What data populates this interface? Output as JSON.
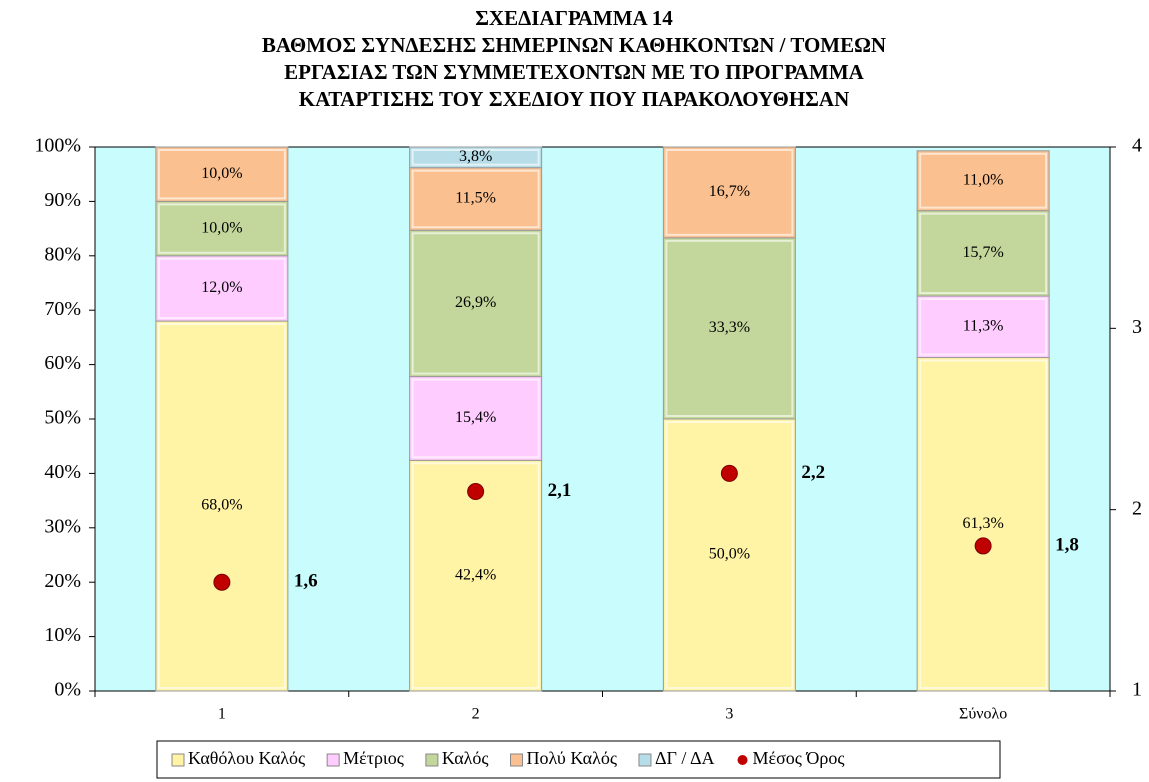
{
  "chart_data": {
    "type": "bar",
    "stacked": true,
    "title": [
      "ΣΧΕΔΙΑΓΡΑΜΜΑ 14",
      "ΒΑΘΜΟΣ ΣΥΝΔΕΣΗΣ ΣΗΜΕΡΙΝΩΝ ΚΑΘΗΚΟΝΤΩΝ / ΤΟΜΕΩΝ",
      "ΕΡΓΑΣΙΑΣ ΤΩΝ ΣΥΜΜΕΤΕΧΟΝΤΩΝ ΜΕ ΤΟ ΠΡΟΓΡΑΜΜΑ",
      "ΚΑΤΑΡΤΙΣΗΣ ΤΟΥ ΣΧΕΔΙΟΥ ΠΟΥ ΠΑΡΑΚΟΛΟΥΘΗΣΑΝ"
    ],
    "categories": [
      "1",
      "2",
      "3",
      "Σύνολο"
    ],
    "series": [
      {
        "name": "Καθόλου Καλός",
        "color": "#fff3a6",
        "values": [
          68.0,
          42.4,
          50.0,
          61.3
        ],
        "value_labels": [
          "68,0%",
          "42,4%",
          "50,0%",
          "61,3%"
        ]
      },
      {
        "name": "Μέτριος",
        "color": "#ffccff",
        "values": [
          12.0,
          15.4,
          null,
          11.3
        ],
        "value_labels": [
          "12,0%",
          "15,4%",
          null,
          "11,3%"
        ]
      },
      {
        "name": "Καλός",
        "color": "#c3d69b",
        "values": [
          10.0,
          26.9,
          33.3,
          15.7
        ],
        "value_labels": [
          "10,0%",
          "26,9%",
          "33,3%",
          "15,7%"
        ]
      },
      {
        "name": "Πολύ Καλός",
        "color": "#fac090",
        "values": [
          10.0,
          11.5,
          16.7,
          11.0
        ],
        "value_labels": [
          "10,0%",
          "11,5%",
          "16,7%",
          "11,0%"
        ]
      },
      {
        "name": "ΔΓ / ΔΑ",
        "color": "#b7dee8",
        "values": [
          null,
          3.8,
          null,
          null
        ],
        "value_labels": [
          null,
          "3,8%",
          null,
          null
        ]
      },
      {
        "name": "Μέσος Όρος",
        "color": "#c00000",
        "type": "scatter",
        "axis": "y2",
        "values": [
          1.6,
          2.1,
          2.2,
          1.8
        ],
        "value_labels": [
          "1,6",
          "2,1",
          "2,2",
          "1,8"
        ]
      }
    ],
    "ylim": [
      0,
      100
    ],
    "yticks": [
      {
        "value": 0,
        "label": "0%"
      },
      {
        "value": 10,
        "label": "10%"
      },
      {
        "value": 20,
        "label": "20%"
      },
      {
        "value": 30,
        "label": "30%"
      },
      {
        "value": 40,
        "label": "40%"
      },
      {
        "value": 50,
        "label": "50%"
      },
      {
        "value": 60,
        "label": "60%"
      },
      {
        "value": 70,
        "label": "70%"
      },
      {
        "value": 80,
        "label": "80%"
      },
      {
        "value": 90,
        "label": "90%"
      },
      {
        "value": 100,
        "label": "100%"
      }
    ],
    "y2lim": [
      1,
      4
    ],
    "y2ticks": [
      1,
      2,
      3,
      4
    ],
    "plot_background": "#c9fdfd",
    "legend": "bottom"
  }
}
